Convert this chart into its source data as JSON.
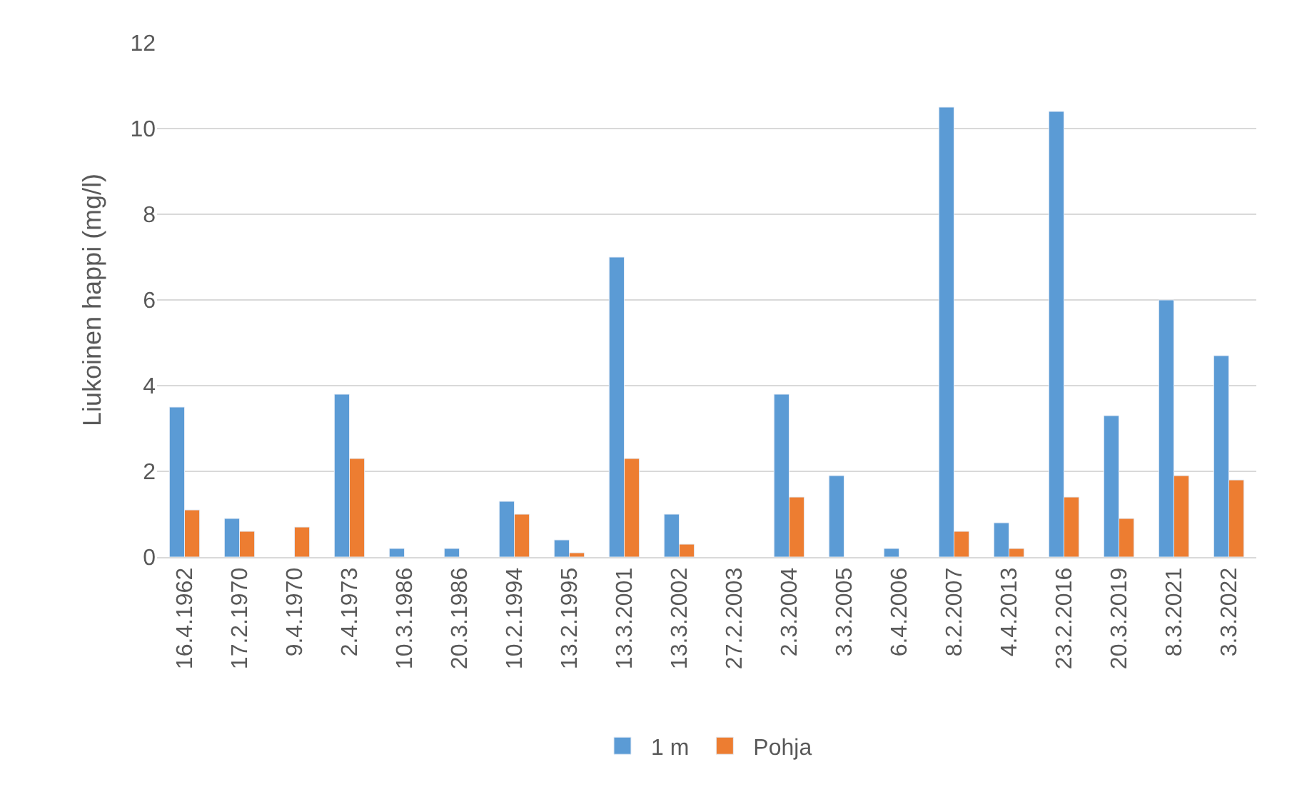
{
  "chart_data": {
    "type": "bar",
    "ylabel": "Liukoinen happi (mg/l)",
    "categories": [
      "16.4.1962",
      "17.2.1970",
      "9.4.1970",
      "2.4.1973",
      "10.3.1986",
      "20.3.1986",
      "10.2.1994",
      "13.2.1995",
      "13.3.2001",
      "13.3.2002",
      "27.2.2003",
      "2.3.2004",
      "3.3.2005",
      "6.4.2006",
      "8.2.2007",
      "4.4.2013",
      "23.2.2016",
      "20.3.2019",
      "8.3.2021",
      "3.3.2022"
    ],
    "series": [
      {
        "name": "1 m",
        "color": "#5b9bd5",
        "values": [
          3.5,
          0.9,
          null,
          3.8,
          0.2,
          0.2,
          1.3,
          0.4,
          7.0,
          1.0,
          null,
          3.8,
          1.9,
          0.2,
          10.5,
          0.8,
          10.4,
          3.3,
          6.0,
          4.7
        ]
      },
      {
        "name": "Pohja",
        "color": "#ed7d31",
        "values": [
          1.1,
          0.6,
          0.7,
          2.3,
          null,
          null,
          1.0,
          0.1,
          2.3,
          0.3,
          null,
          1.4,
          null,
          null,
          0.6,
          0.2,
          1.4,
          0.9,
          1.9,
          1.8
        ]
      }
    ],
    "ylim": [
      0,
      12
    ],
    "yticks": [
      0,
      2,
      4,
      6,
      8,
      10,
      12
    ],
    "grid": "y",
    "legend": "bottom"
  }
}
